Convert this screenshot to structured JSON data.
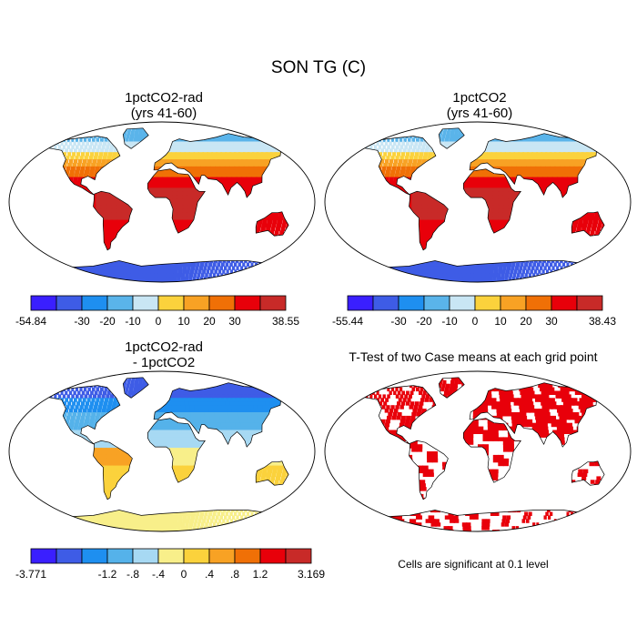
{
  "figure": {
    "title": "SON TG (C)",
    "footnote": "Cells are significant at 0.1 level"
  },
  "colors": {
    "abs_palette": [
      "#3a1fff",
      "#3e5ce6",
      "#1e8ff0",
      "#5ab4ea",
      "#c9e6f4",
      "#fbd23c",
      "#f8a224",
      "#f07006",
      "#e8000a",
      "#c82a28"
    ],
    "diff_palette": [
      "#3a1fff",
      "#3e5ce6",
      "#1e8ff0",
      "#55b2ea",
      "#a7d9f3",
      "#f8ef8a",
      "#fbd23c",
      "#f8a224",
      "#f07006",
      "#e8000a",
      "#c82a28"
    ],
    "significant": "#e8000a"
  },
  "chart_data": [
    {
      "type": "heatmap",
      "title": "1pctCO2-rad\n(yrs 41-60)",
      "title_lines": [
        "1pctCO2-rad",
        "(yrs 41-60)"
      ],
      "map": "global surface temperature, SON mean",
      "colorbar_labels": [
        "-54.84",
        "-30",
        "-20",
        "-10",
        "0",
        "10",
        "20",
        "30",
        "38.55"
      ],
      "colorbar_min": -54.84,
      "colorbar_max": 38.55
    },
    {
      "type": "heatmap",
      "title": "1pctCO2\n(yrs 41-60)",
      "title_lines": [
        "1pctCO2",
        "(yrs 41-60)"
      ],
      "map": "global surface temperature, SON mean",
      "colorbar_labels": [
        "-55.44",
        "-30",
        "-20",
        "-10",
        "0",
        "10",
        "20",
        "30",
        "38.43"
      ],
      "colorbar_min": -55.44,
      "colorbar_max": 38.43
    },
    {
      "type": "heatmap",
      "title": "1pctCO2-rad\n- 1pctCO2",
      "title_lines": [
        "1pctCO2-rad",
        "- 1pctCO2"
      ],
      "map": "difference of means",
      "colorbar_labels": [
        "-3.771",
        "-1.2",
        "-.8",
        "-.4",
        "0",
        ".4",
        ".8",
        "1.2",
        "3.169"
      ],
      "colorbar_min": -3.771,
      "colorbar_max": 3.169
    },
    {
      "type": "heatmap",
      "title": "T-Test of two Case means at each grid point",
      "title_lines": [
        "T-Test of two Case means at each grid point"
      ],
      "map": "grid cells significant at 0.1 level"
    }
  ]
}
